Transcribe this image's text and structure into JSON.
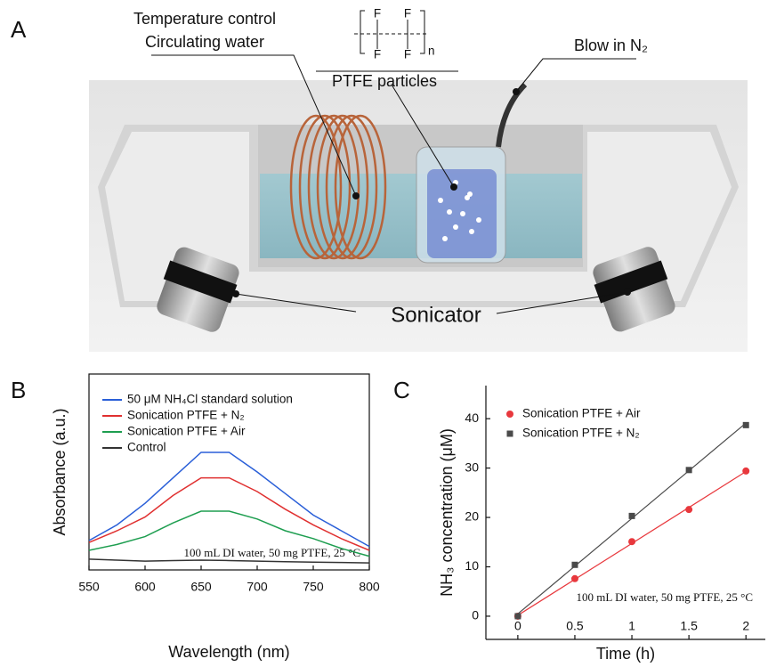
{
  "figure": {
    "panel_labels": [
      "A",
      "B",
      "C"
    ],
    "diagram": {
      "coil_label_1": "Temperature control",
      "coil_label_2": "Circulating water",
      "particles_label": "PTFE particles",
      "gas_label": "Blow in N₂",
      "sonicator_label": "Sonicator",
      "structure_atoms": [
        "F",
        "F",
        "F",
        "F"
      ],
      "structure_repeat": "n"
    }
  },
  "chart_data": [
    {
      "type": "line",
      "xlabel": "Wavelength (nm)",
      "ylabel": "Absorbance (a.u.)",
      "annotation": "100 mL DI water, 50 mg PTFE, 25 °C",
      "legend": "upper left",
      "x": [
        550,
        575,
        600,
        625,
        650,
        675,
        700,
        725,
        750,
        775,
        800
      ],
      "series": [
        {
          "name": "50 μM NH₄Cl standard solution",
          "color": "#2a5fd8",
          "values": [
            0.15,
            0.23,
            0.34,
            0.47,
            0.6,
            0.6,
            0.5,
            0.39,
            0.28,
            0.2,
            0.12
          ]
        },
        {
          "name": "Sonication PTFE + N₂",
          "color": "#e03030",
          "values": [
            0.14,
            0.2,
            0.27,
            0.38,
            0.47,
            0.47,
            0.4,
            0.31,
            0.23,
            0.16,
            0.1
          ]
        },
        {
          "name": "Sonication PTFE + Air",
          "color": "#1e9e50",
          "values": [
            0.1,
            0.13,
            0.17,
            0.24,
            0.3,
            0.3,
            0.26,
            0.2,
            0.16,
            0.11,
            0.07
          ]
        },
        {
          "name": "Control",
          "color": "#333333",
          "values": [
            0.055,
            0.05,
            0.045,
            0.048,
            0.05,
            0.048,
            0.045,
            0.042,
            0.04,
            0.038,
            0.036
          ]
        }
      ],
      "xlim": [
        550,
        800
      ],
      "xticks": [
        550,
        600,
        650,
        700,
        750,
        800
      ],
      "ylim": [
        0,
        1
      ]
    },
    {
      "type": "scatter",
      "xlabel": "Time (h)",
      "ylabel": "NH₃ concentration (μM)",
      "annotation": "100 mL  DI water, 50 mg PTFE, 25 °C",
      "legend": "upper left",
      "fit_lines": true,
      "x": [
        0,
        0.5,
        1,
        1.5,
        2
      ],
      "series": [
        {
          "name": "Sonication PTFE + Air",
          "color": "#e8383d",
          "marker": "circle",
          "values": [
            0,
            7.6,
            15.1,
            21.6,
            29.4
          ]
        },
        {
          "name": "Sonication PTFE + N₂",
          "color": "#4a4a4a",
          "marker": "square",
          "values": [
            0,
            10.4,
            20.3,
            29.6,
            38.7
          ]
        }
      ],
      "xlim": [
        -0.28,
        2.17
      ],
      "xticks": [
        0,
        0.5,
        1,
        1.5,
        2
      ],
      "ylim": [
        -4.7,
        46.7
      ],
      "yticks": [
        0,
        10,
        20,
        30,
        40
      ]
    }
  ]
}
